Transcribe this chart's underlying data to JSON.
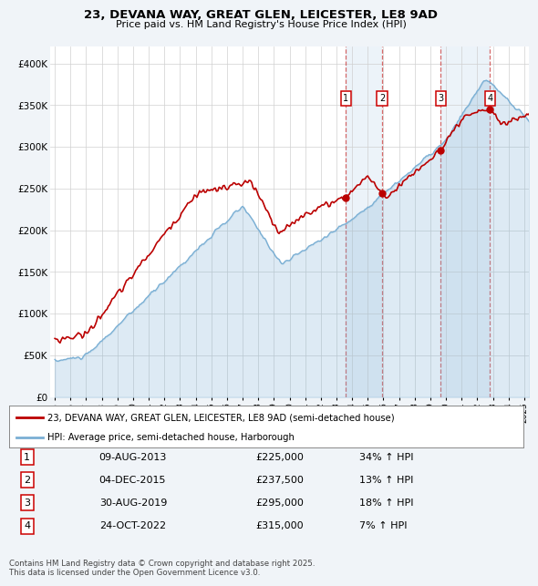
{
  "title1": "23, DEVANA WAY, GREAT GLEN, LEICESTER, LE8 9AD",
  "title2": "Price paid vs. HM Land Registry's House Price Index (HPI)",
  "ylabel_vals": [
    0,
    50000,
    100000,
    150000,
    200000,
    250000,
    300000,
    350000,
    400000
  ],
  "ylabel_labels": [
    "£0",
    "£50K",
    "£100K",
    "£150K",
    "£200K",
    "£250K",
    "£300K",
    "£350K",
    "£400K"
  ],
  "red_color": "#bb0000",
  "blue_color": "#7aafd4",
  "blue_fill": "#ddeeff",
  "transaction_prices": [
    225000,
    237500,
    295000,
    315000
  ],
  "transaction_labels": [
    "1",
    "2",
    "3",
    "4"
  ],
  "transaction_pct": [
    "34% ↑ HPI",
    "13% ↑ HPI",
    "18% ↑ HPI",
    "7% ↑ HPI"
  ],
  "transaction_dates_str": [
    "09-AUG-2013",
    "04-DEC-2015",
    "30-AUG-2019",
    "24-OCT-2022"
  ],
  "transaction_prices_str": [
    "£225,000",
    "£237,500",
    "£295,000",
    "£315,000"
  ],
  "legend_line1": "23, DEVANA WAY, GREAT GLEN, LEICESTER, LE8 9AD (semi-detached house)",
  "legend_line2": "HPI: Average price, semi-detached house, Harborough",
  "footer": "Contains HM Land Registry data © Crown copyright and database right 2025.\nThis data is licensed under the Open Government Licence v3.0.",
  "background_color": "#f0f4f8",
  "plot_bg": "#ffffff"
}
